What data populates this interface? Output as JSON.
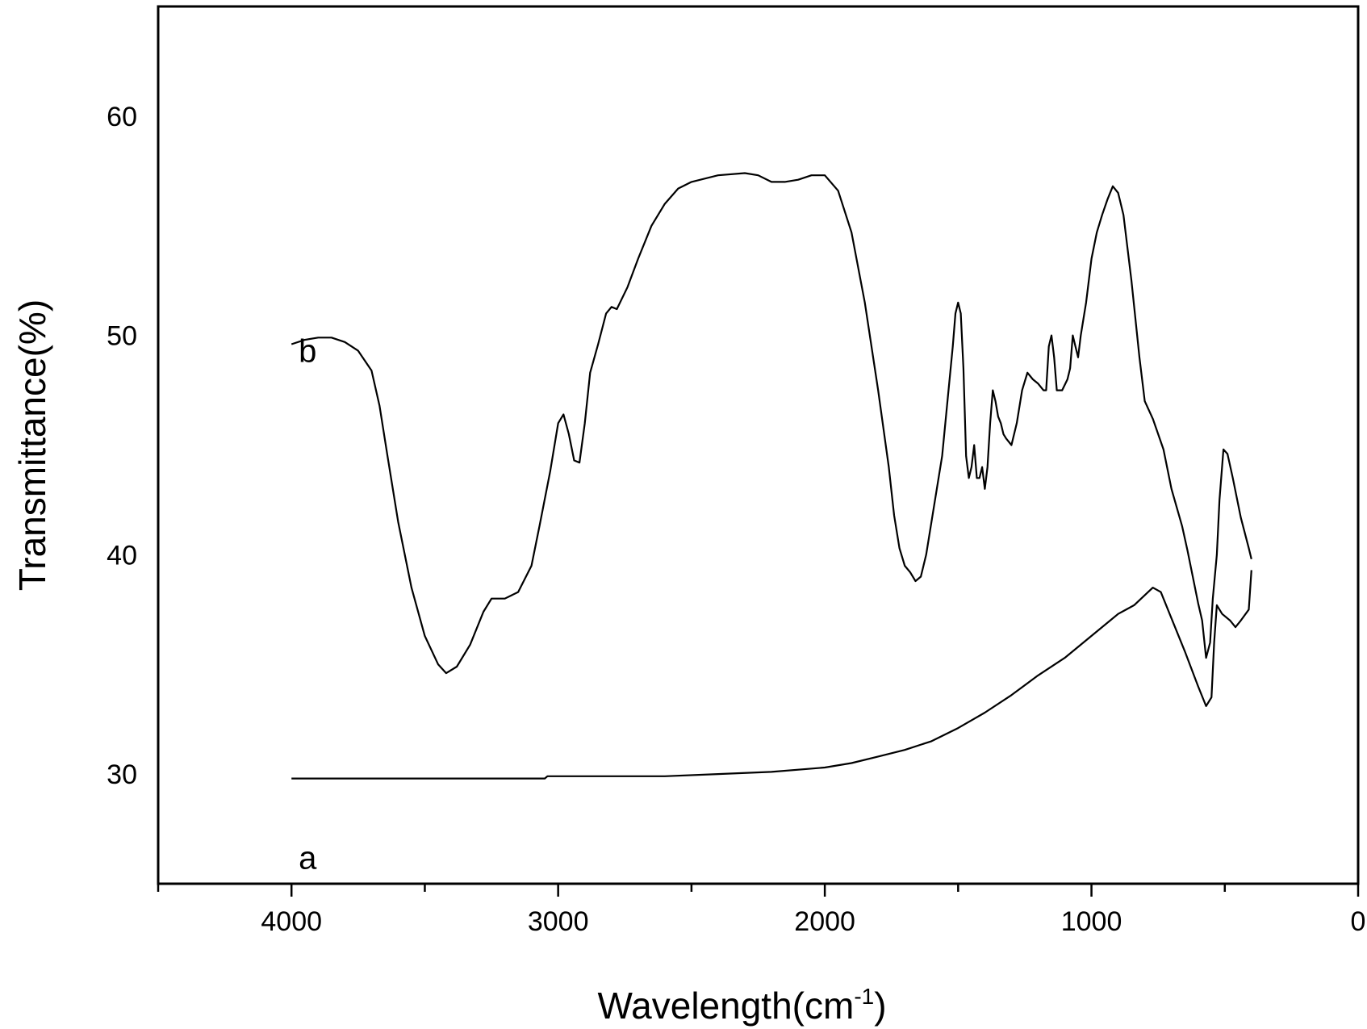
{
  "chart_data": {
    "type": "line",
    "title": "",
    "xlabel": "Wavelength(cm",
    "xlabel_sup": "-1",
    "xlabel_close": ")",
    "ylabel": "Transmittance(%)",
    "xlim": [
      4500,
      0
    ],
    "ylim": [
      25,
      65
    ],
    "x_ticks": [
      4000,
      3000,
      2000,
      1000,
      0
    ],
    "y_ticks": [
      30,
      40,
      50,
      60
    ],
    "grid": false,
    "line_color": "#000000",
    "series": [
      {
        "label": "a",
        "label_pos": {
          "x": 4000,
          "y": 26.2
        },
        "points": [
          [
            4000,
            29.8
          ],
          [
            3500,
            29.8
          ],
          [
            3050,
            29.8
          ],
          [
            3040,
            29.9
          ],
          [
            3000,
            29.9
          ],
          [
            2600,
            29.9
          ],
          [
            2400,
            30.0
          ],
          [
            2200,
            30.1
          ],
          [
            2000,
            30.3
          ],
          [
            1900,
            30.5
          ],
          [
            1800,
            30.8
          ],
          [
            1700,
            31.1
          ],
          [
            1600,
            31.5
          ],
          [
            1500,
            32.1
          ],
          [
            1400,
            32.8
          ],
          [
            1300,
            33.6
          ],
          [
            1200,
            34.5
          ],
          [
            1100,
            35.3
          ],
          [
            1000,
            36.3
          ],
          [
            900,
            37.3
          ],
          [
            840,
            37.7
          ],
          [
            770,
            38.5
          ],
          [
            740,
            38.3
          ],
          [
            700,
            37.1
          ],
          [
            650,
            35.6
          ],
          [
            600,
            34.0
          ],
          [
            570,
            33.1
          ],
          [
            550,
            33.5
          ],
          [
            540,
            36.0
          ],
          [
            530,
            37.7
          ],
          [
            510,
            37.3
          ],
          [
            480,
            37.0
          ],
          [
            460,
            36.7
          ],
          [
            440,
            37.0
          ],
          [
            410,
            37.5
          ],
          [
            400,
            39.3
          ]
        ]
      },
      {
        "label": "b",
        "label_pos": {
          "x": 4000,
          "y": 49.3
        },
        "points": [
          [
            4000,
            49.6
          ],
          [
            3950,
            49.8
          ],
          [
            3900,
            49.9
          ],
          [
            3850,
            49.9
          ],
          [
            3800,
            49.7
          ],
          [
            3750,
            49.3
          ],
          [
            3700,
            48.4
          ],
          [
            3670,
            46.8
          ],
          [
            3640,
            44.5
          ],
          [
            3600,
            41.5
          ],
          [
            3550,
            38.5
          ],
          [
            3500,
            36.3
          ],
          [
            3450,
            35.0
          ],
          [
            3420,
            34.6
          ],
          [
            3380,
            34.9
          ],
          [
            3330,
            35.9
          ],
          [
            3280,
            37.4
          ],
          [
            3250,
            38.0
          ],
          [
            3200,
            38.0
          ],
          [
            3150,
            38.3
          ],
          [
            3100,
            39.5
          ],
          [
            3070,
            41.3
          ],
          [
            3030,
            43.8
          ],
          [
            3000,
            46.0
          ],
          [
            2980,
            46.4
          ],
          [
            2960,
            45.5
          ],
          [
            2940,
            44.3
          ],
          [
            2920,
            44.2
          ],
          [
            2900,
            46.0
          ],
          [
            2880,
            48.3
          ],
          [
            2850,
            49.6
          ],
          [
            2820,
            51.0
          ],
          [
            2800,
            51.3
          ],
          [
            2780,
            51.2
          ],
          [
            2740,
            52.2
          ],
          [
            2700,
            53.5
          ],
          [
            2650,
            55.0
          ],
          [
            2600,
            56.0
          ],
          [
            2550,
            56.7
          ],
          [
            2500,
            57.0
          ],
          [
            2400,
            57.3
          ],
          [
            2300,
            57.4
          ],
          [
            2250,
            57.3
          ],
          [
            2200,
            57.0
          ],
          [
            2150,
            57.0
          ],
          [
            2100,
            57.1
          ],
          [
            2050,
            57.3
          ],
          [
            2000,
            57.3
          ],
          [
            1950,
            56.6
          ],
          [
            1900,
            54.7
          ],
          [
            1850,
            51.5
          ],
          [
            1800,
            47.5
          ],
          [
            1760,
            44.0
          ],
          [
            1740,
            41.8
          ],
          [
            1720,
            40.3
          ],
          [
            1700,
            39.5
          ],
          [
            1680,
            39.2
          ],
          [
            1660,
            38.8
          ],
          [
            1640,
            39.0
          ],
          [
            1620,
            40.0
          ],
          [
            1600,
            41.5
          ],
          [
            1580,
            43.0
          ],
          [
            1560,
            44.5
          ],
          [
            1540,
            47.0
          ],
          [
            1520,
            49.5
          ],
          [
            1510,
            51.0
          ],
          [
            1500,
            51.5
          ],
          [
            1490,
            51.0
          ],
          [
            1480,
            48.5
          ],
          [
            1470,
            44.5
          ],
          [
            1460,
            43.5
          ],
          [
            1450,
            44.0
          ],
          [
            1440,
            45.0
          ],
          [
            1430,
            43.5
          ],
          [
            1420,
            43.5
          ],
          [
            1410,
            44.0
          ],
          [
            1400,
            43.0
          ],
          [
            1390,
            44.0
          ],
          [
            1380,
            46.0
          ],
          [
            1370,
            47.5
          ],
          [
            1360,
            47.0
          ],
          [
            1350,
            46.3
          ],
          [
            1340,
            46.0
          ],
          [
            1330,
            45.5
          ],
          [
            1320,
            45.3
          ],
          [
            1300,
            45.0
          ],
          [
            1280,
            46.0
          ],
          [
            1260,
            47.5
          ],
          [
            1240,
            48.3
          ],
          [
            1220,
            48.0
          ],
          [
            1200,
            47.8
          ],
          [
            1180,
            47.5
          ],
          [
            1170,
            47.5
          ],
          [
            1160,
            49.5
          ],
          [
            1150,
            50.0
          ],
          [
            1140,
            49.0
          ],
          [
            1130,
            47.5
          ],
          [
            1110,
            47.5
          ],
          [
            1090,
            48.0
          ],
          [
            1080,
            48.5
          ],
          [
            1070,
            50.0
          ],
          [
            1060,
            49.5
          ],
          [
            1050,
            49.0
          ],
          [
            1040,
            50.0
          ],
          [
            1020,
            51.5
          ],
          [
            1000,
            53.5
          ],
          [
            980,
            54.7
          ],
          [
            960,
            55.5
          ],
          [
            940,
            56.2
          ],
          [
            920,
            56.8
          ],
          [
            900,
            56.5
          ],
          [
            880,
            55.5
          ],
          [
            850,
            52.5
          ],
          [
            820,
            49.0
          ],
          [
            800,
            47.0
          ],
          [
            770,
            46.2
          ],
          [
            730,
            44.8
          ],
          [
            700,
            43.0
          ],
          [
            660,
            41.3
          ],
          [
            640,
            40.2
          ],
          [
            620,
            39.0
          ],
          [
            600,
            37.8
          ],
          [
            585,
            37.0
          ],
          [
            570,
            35.3
          ],
          [
            555,
            36.0
          ],
          [
            545,
            38.0
          ],
          [
            530,
            40.0
          ],
          [
            520,
            42.5
          ],
          [
            505,
            44.8
          ],
          [
            490,
            44.6
          ],
          [
            470,
            43.5
          ],
          [
            440,
            41.7
          ],
          [
            410,
            40.3
          ],
          [
            400,
            39.8
          ]
        ]
      }
    ]
  }
}
